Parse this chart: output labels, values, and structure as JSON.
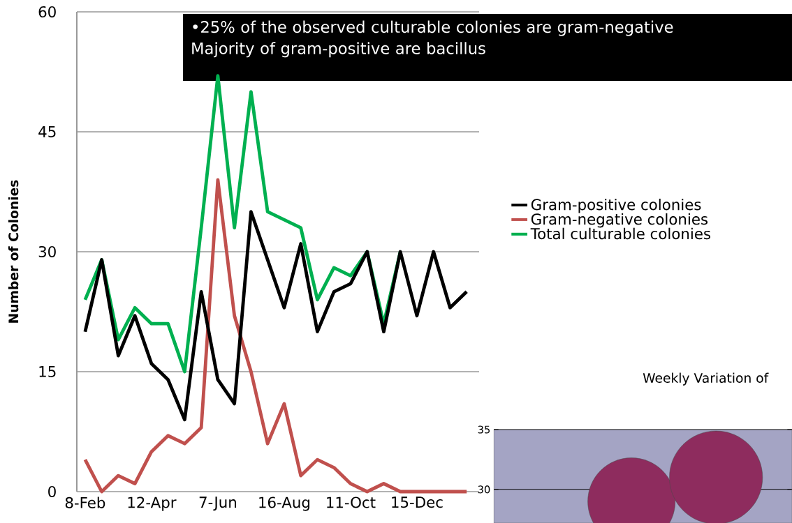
{
  "chart_data": [
    {
      "type": "line",
      "ylabel": "Number of Colonies",
      "categories": [
        "8-Feb",
        null,
        null,
        null,
        "12-Apr",
        null,
        null,
        null,
        "7-Jun",
        null,
        null,
        null,
        "16-Aug",
        null,
        null,
        null,
        "11-Oct",
        null,
        null,
        null,
        "15-Dec",
        null,
        null,
        null
      ],
      "series": [
        {
          "name": "Gram-positive colonies",
          "color": "#000000",
          "values": [
            20,
            29,
            17,
            22,
            16,
            14,
            9,
            25,
            14,
            11,
            35,
            29,
            23,
            31,
            20,
            25,
            26,
            30,
            20,
            30,
            22,
            30,
            23,
            25
          ]
        },
        {
          "name": "Gram-negative colonies",
          "color": "#c0504d",
          "values": [
            4,
            0,
            2,
            1,
            5,
            7,
            6,
            8,
            39,
            22,
            15,
            6,
            11,
            2,
            4,
            3,
            1,
            0,
            1,
            0,
            0,
            0,
            0,
            0
          ]
        },
        {
          "name": "Total culturable colonies",
          "color": "#00b050",
          "values": [
            24,
            29,
            19,
            23,
            21,
            21,
            15,
            33,
            52,
            33,
            50,
            35,
            34,
            33,
            24,
            28,
            27,
            30,
            21,
            30,
            null,
            null,
            null,
            null
          ]
        }
      ],
      "ylim": [
        0,
        60
      ],
      "yticks": [
        0,
        15,
        30,
        45,
        60
      ],
      "grid": "y",
      "legend": "right",
      "annotations": [
        "•25% of the observed culturable colonies are  gram-negative",
        "Majority of gram-positive are bacillus"
      ]
    },
    {
      "type": "bubble",
      "title": "Weekly Variation of",
      "categories": [
        null,
        null
      ],
      "series": [
        {
          "color": "#8e2c5e",
          "values": [
            29,
            31
          ],
          "sizes": [
            0.88,
            1
          ]
        }
      ],
      "ylim": [
        27.2,
        35
      ],
      "yticks": [
        30,
        35
      ],
      "grid": "y",
      "tick_labels": "y"
    }
  ]
}
